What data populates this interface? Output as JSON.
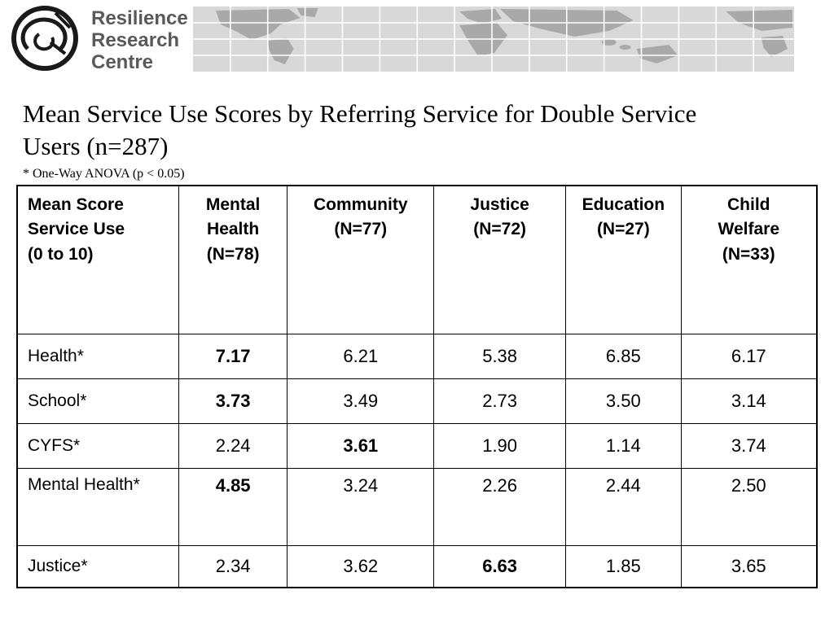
{
  "logo": {
    "text": "Resilience\nResearch\nCentre"
  },
  "slide": {
    "title": "Mean Service Use Scores by Referring Service for Double Service Users (n=287)",
    "footnote": "* One-Way ANOVA  (p < 0.05)"
  },
  "table": {
    "headers": [
      "Mean Score\nService Use\n(0 to 10)",
      "Mental\nHealth\n(N=78)",
      "Community\n(N=77)",
      "Justice\n(N=72)",
      "Education\n(N=27)",
      "Child\nWelfare\n(N=33)"
    ],
    "rows": [
      {
        "label": "Health*",
        "values": [
          "7.17",
          "6.21",
          "5.38",
          "6.85",
          "6.17"
        ],
        "bold_col": 0
      },
      {
        "label": "School*",
        "values": [
          "3.73",
          "3.49",
          "2.73",
          "3.50",
          "3.14"
        ],
        "bold_col": 0
      },
      {
        "label": "CYFS*",
        "values": [
          "2.24",
          "3.61",
          "1.90",
          "1.14",
          "3.74"
        ],
        "bold_col": 1
      },
      {
        "label": "Mental Health*",
        "values": [
          "4.85",
          "3.24",
          "2.26",
          "2.44",
          "2.50"
        ],
        "bold_col": 0
      },
      {
        "label": "Justice*",
        "values": [
          "2.34",
          "3.62",
          "6.63",
          "1.85",
          "3.65"
        ],
        "bold_col": 2
      }
    ]
  }
}
